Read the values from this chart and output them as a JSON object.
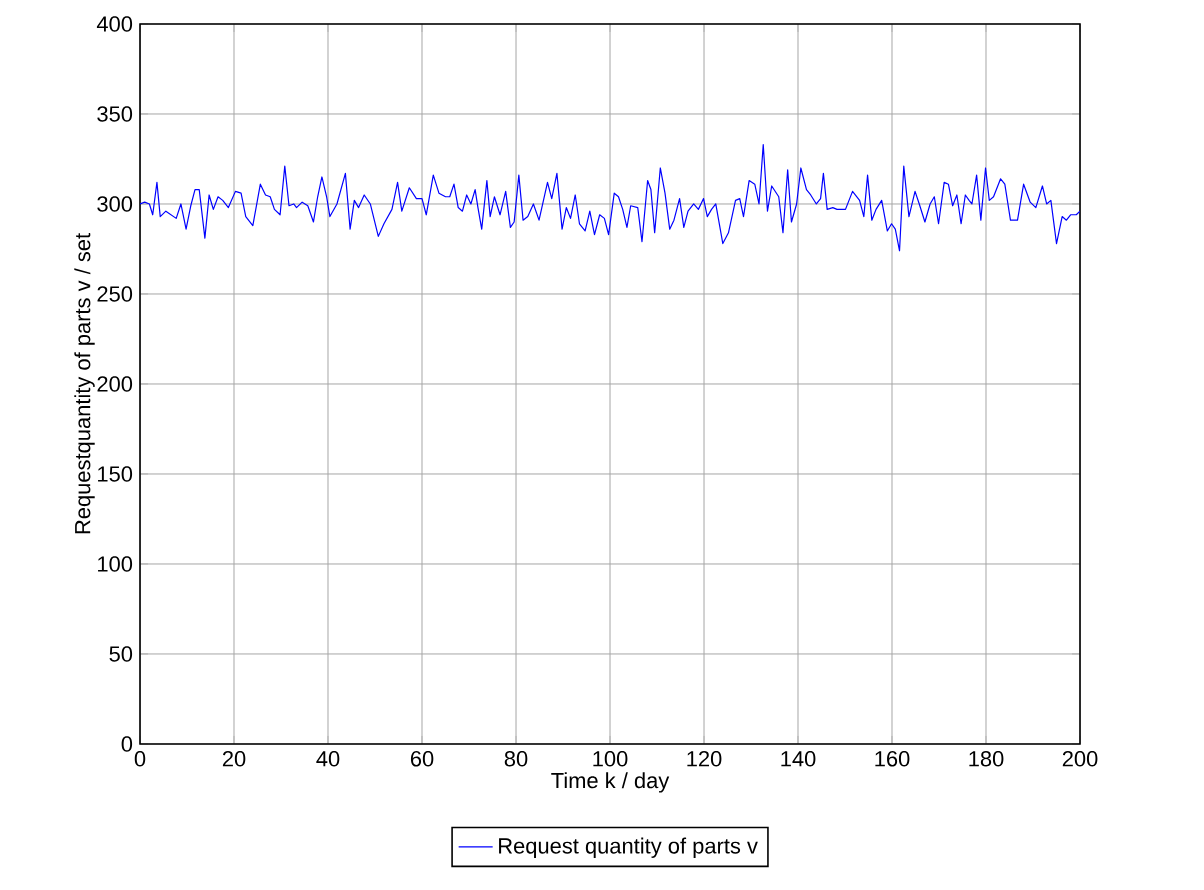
{
  "chart_data": {
    "type": "line",
    "xlabel": "Time k / day",
    "ylabel": "Requestquantity of parts v / set",
    "xlim": [
      0,
      200
    ],
    "ylim": [
      0,
      400
    ],
    "xticks": [
      0,
      20,
      40,
      60,
      80,
      100,
      120,
      140,
      160,
      180,
      200
    ],
    "yticks": [
      0,
      50,
      100,
      150,
      200,
      250,
      300,
      350,
      400
    ],
    "grid": true,
    "legend": "bottom",
    "series": [
      {
        "name": "Request quantity of parts v",
        "color": "#0000ff",
        "x": [
          0,
          1,
          2,
          2.7,
          3.6,
          4.3,
          5.5,
          7.7,
          8.7,
          9.8,
          10.8,
          11.7,
          12.6,
          13.8,
          14.7,
          15.6,
          16.6,
          17.6,
          18.8,
          20.3,
          21.5,
          22.5,
          24,
          25.6,
          26.7,
          27.7,
          28.6,
          29.8,
          30.8,
          31.7,
          32.7,
          33.3,
          34.5,
          35.7,
          36.9,
          37.8,
          38.7,
          39.7,
          40.4,
          41.9,
          43.7,
          44.7,
          45.6,
          46.5,
          47.7,
          49,
          50.7,
          51.9,
          53.6,
          54.8,
          55.7,
          57.3,
          58.8,
          60,
          60.9,
          62.4,
          63.6,
          65,
          65.9,
          66.8,
          67.7,
          68.6,
          69.5,
          70.4,
          71.3,
          71.9,
          72.7,
          73.8,
          74.5,
          75.4,
          76.6,
          77.8,
          78.8,
          79.6,
          80.6,
          81.5,
          82.5,
          83.7,
          84.9,
          86.7,
          87.6,
          88.7,
          89.8,
          90.7,
          91.6,
          92.6,
          93.5,
          94.7,
          95.7,
          96.7,
          97.8,
          98.8,
          99.7,
          100.9,
          101.8,
          102.7,
          103.6,
          104.4,
          105.9,
          106.8,
          108,
          108.7,
          109.5,
          110.7,
          111.7,
          112.7,
          113.6,
          114.8,
          115.7,
          116.6,
          117.8,
          118.8,
          119.9,
          120.7,
          121.6,
          122.5,
          124,
          125.2,
          126.7,
          127.6,
          128.4,
          129.6,
          130.8,
          131.7,
          132.6,
          133.5,
          134.4,
          135.9,
          136.8,
          137.8,
          138.6,
          139.7,
          140.6,
          141.8,
          142.7,
          143.9,
          144.8,
          145.4,
          146.2,
          147.4,
          148.3,
          150.1,
          151.6,
          153.1,
          154,
          154.8,
          155.7,
          156.6,
          157.8,
          159,
          159.9,
          160.7,
          161.6,
          162.5,
          163.6,
          164.9,
          165.8,
          167,
          168.1,
          169,
          169.9,
          171.1,
          172,
          172.9,
          173.8,
          174.7,
          175.6,
          176.4,
          177,
          178,
          178.9,
          179.9,
          180.7,
          181.6,
          183.1,
          184,
          185.2,
          186.7,
          188,
          189.4,
          190.6,
          192,
          192.9,
          193.8,
          195,
          196.2,
          197.1,
          198,
          199.2,
          200
        ],
        "values": [
          300,
          301,
          300,
          294,
          312,
          293,
          296,
          292,
          300,
          286,
          299,
          308,
          308,
          281,
          305,
          297,
          304,
          302,
          298,
          307,
          306,
          293,
          288,
          311,
          305,
          304,
          297,
          294,
          321,
          299,
          300,
          298,
          301,
          299,
          290,
          304,
          315,
          304,
          293,
          300,
          317,
          286,
          302,
          298,
          305,
          300,
          282,
          289,
          297,
          312,
          296,
          309,
          303,
          303,
          294,
          316,
          306,
          304,
          304,
          311,
          298,
          296,
          305,
          300,
          308,
          298,
          286,
          313,
          293,
          304,
          294,
          307,
          287,
          290,
          316,
          291,
          293,
          300,
          291,
          312,
          303,
          317,
          286,
          298,
          292,
          305,
          289,
          285,
          296,
          283,
          294,
          292,
          283,
          306,
          304,
          297,
          287,
          299,
          298,
          279,
          313,
          308,
          284,
          320,
          306,
          286,
          291,
          303,
          287,
          296,
          300,
          297,
          303,
          293,
          297,
          300,
          278,
          284,
          302,
          303,
          293,
          313,
          311,
          300,
          333,
          296,
          310,
          304,
          284,
          319,
          290,
          300,
          320,
          308,
          305,
          300,
          303,
          317,
          297,
          298,
          297,
          297,
          307,
          302,
          293,
          316,
          291,
          297,
          302,
          285,
          289,
          286,
          274,
          321,
          293,
          307,
          300,
          290,
          300,
          304,
          289,
          312,
          311,
          299,
          305,
          289,
          305,
          302,
          300,
          316,
          291,
          320,
          302,
          304,
          314,
          311,
          291,
          291,
          311,
          301,
          298,
          310,
          300,
          302,
          278,
          293,
          291,
          294,
          294,
          296
        ]
      }
    ]
  }
}
